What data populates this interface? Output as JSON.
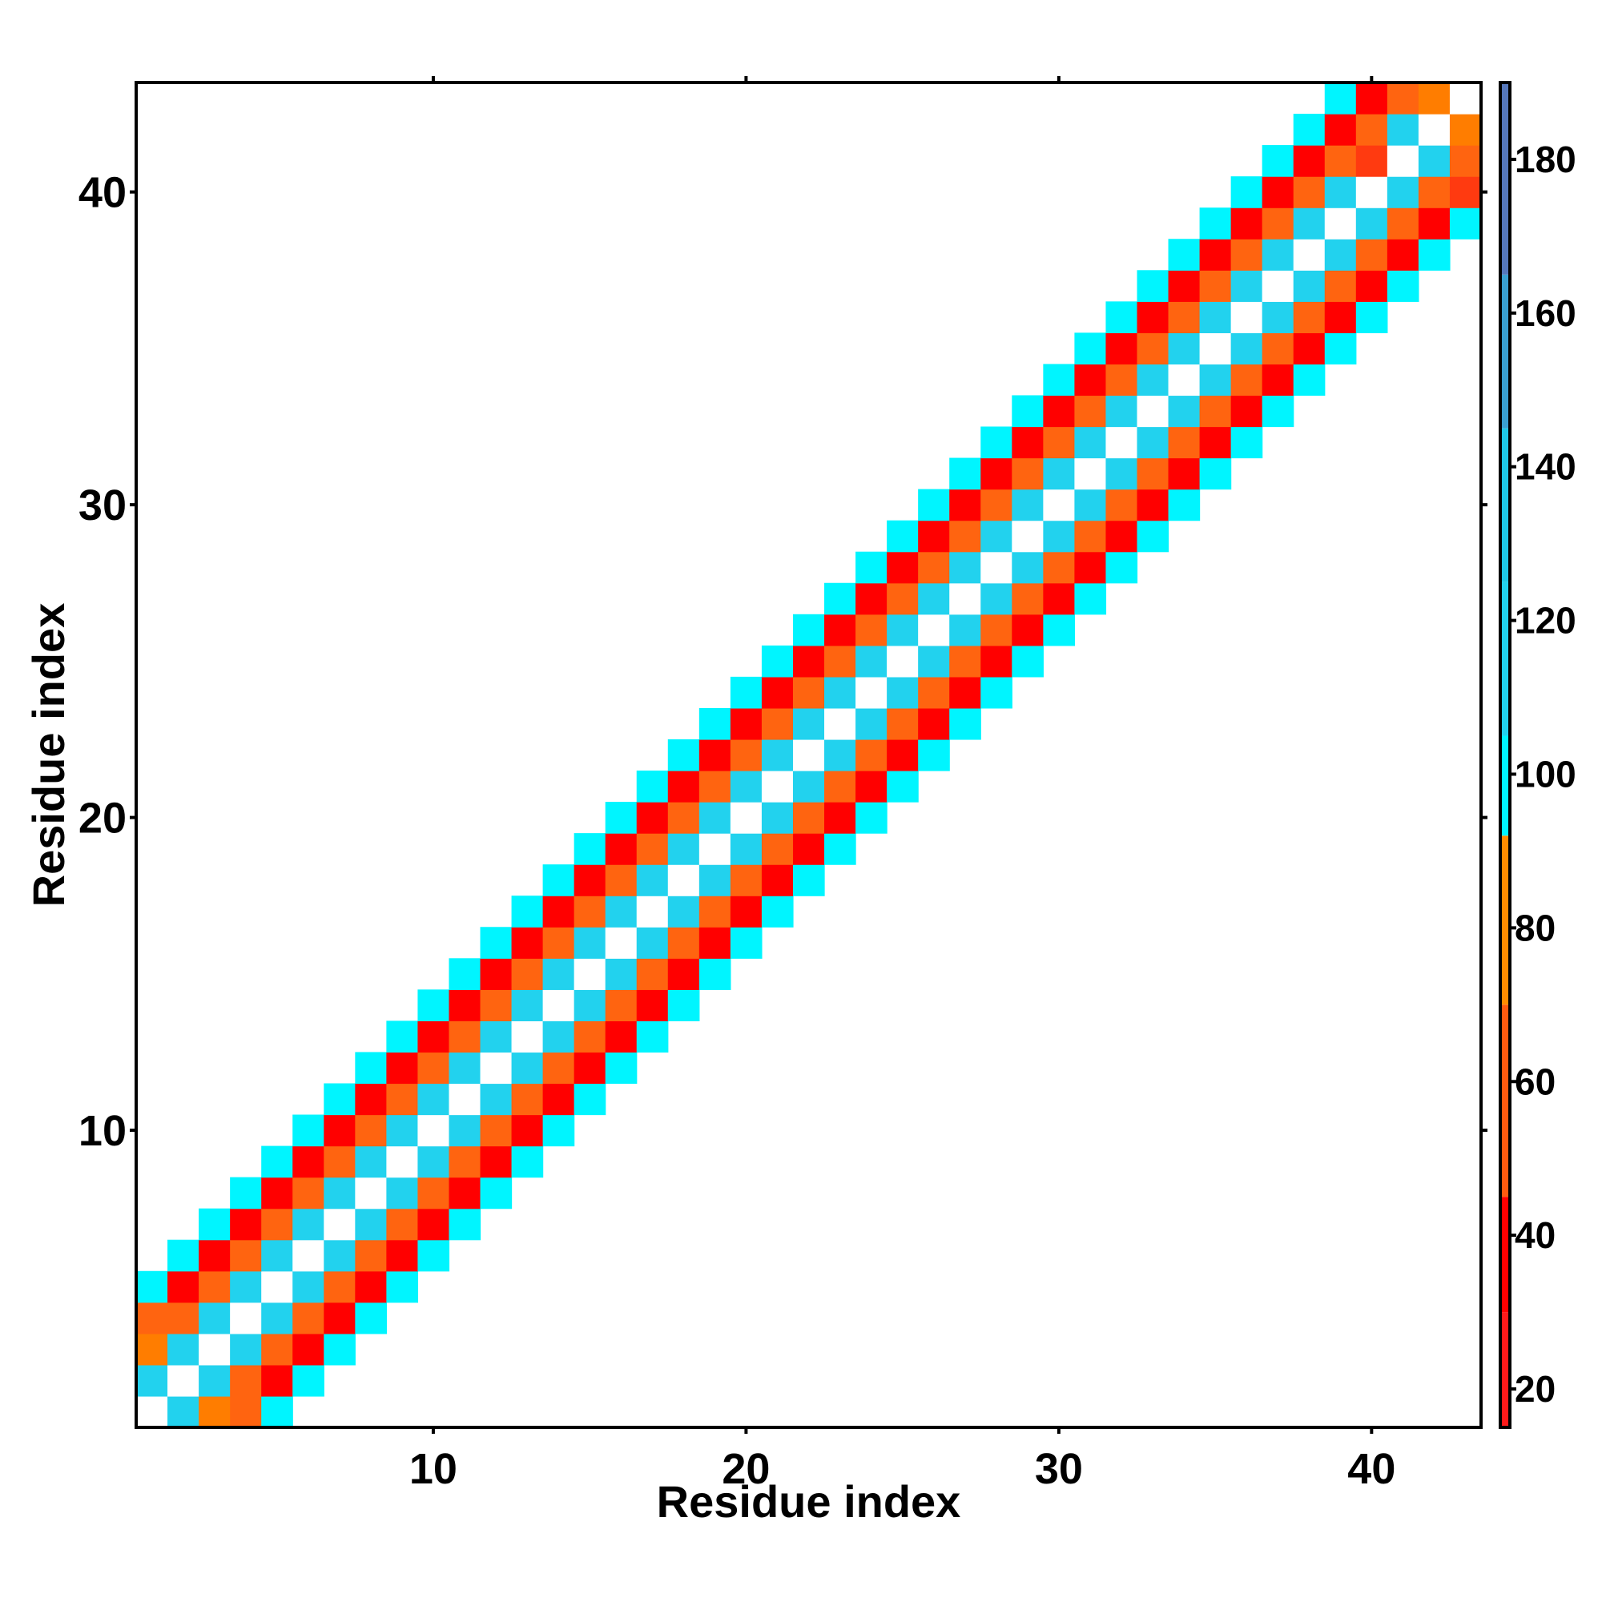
{
  "chart_data": {
    "type": "heatmap",
    "title": "",
    "xlabel": "Residue index",
    "ylabel": "Residue index",
    "xlim": [
      0.5,
      43.5
    ],
    "ylim": [
      0.5,
      43.5
    ],
    "x_ticks": [
      10,
      20,
      30,
      40
    ],
    "y_ticks": [
      10,
      20,
      30,
      40
    ],
    "grid": false,
    "colorbar": {
      "range": [
        15,
        190
      ],
      "ticks": [
        20,
        40,
        60,
        80,
        100,
        120,
        140,
        160,
        180
      ],
      "bands": [
        {
          "from": 15,
          "to": 30,
          "color": "#ff1a1a"
        },
        {
          "from": 30,
          "to": 45,
          "color": "#ff0000"
        },
        {
          "from": 45,
          "to": 70,
          "color": "#ff5a0f"
        },
        {
          "from": 70,
          "to": 92,
          "color": "#ff8c00"
        },
        {
          "from": 92,
          "to": 105,
          "color": "#00f5ff"
        },
        {
          "from": 105,
          "to": 125,
          "color": "#22d2ee"
        },
        {
          "from": 125,
          "to": 145,
          "color": "#1fc8e6"
        },
        {
          "from": 145,
          "to": 165,
          "color": "#3a9fd0"
        },
        {
          "from": 165,
          "to": 190,
          "color": "#5577bb"
        }
      ]
    },
    "palette": {
      "W": "#ffffff",
      "C": "#22d2ee",
      "A": "#00f5ff",
      "O": "#ff6410",
      "R": "#ff0000",
      "Y": "#ff7d00",
      "T": "#ff3a10"
    },
    "diagonal_offsets": [
      -4,
      -3,
      -2,
      -1,
      0,
      1,
      2,
      3,
      4
    ],
    "diagonal_codes": [
      "A",
      "R",
      "O",
      "C",
      "W",
      "C",
      "O",
      "R",
      "A"
    ],
    "overrides": [
      {
        "row": 1,
        "col": 2,
        "code": "C"
      },
      {
        "row": 1,
        "col": 3,
        "code": "Y"
      },
      {
        "row": 1,
        "col": 4,
        "code": "O"
      },
      {
        "row": 2,
        "col": 1,
        "code": "C"
      },
      {
        "row": 3,
        "col": 1,
        "code": "Y"
      },
      {
        "row": 4,
        "col": 1,
        "code": "O"
      },
      {
        "row": 41,
        "col": 40,
        "code": "T"
      },
      {
        "row": 42,
        "col": 43,
        "code": "Y"
      },
      {
        "row": 43,
        "col": 42,
        "code": "Y"
      },
      {
        "row": 40,
        "col": 43,
        "code": "T"
      }
    ]
  }
}
